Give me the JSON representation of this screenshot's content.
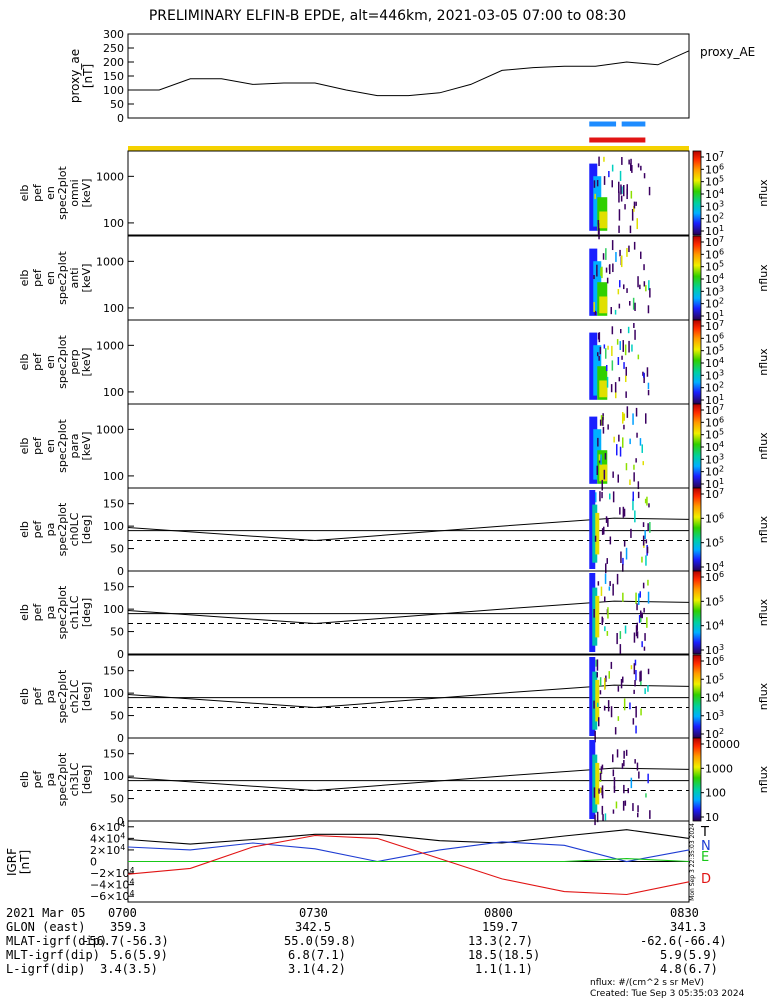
{
  "title": "PRELIMINARY ELFIN-B EPDE, alt=446km, 2021-03-05 07:00 to 08:30",
  "ae_panel": {
    "ylabel_line1": "proxy_ae",
    "ylabel_line2": "[nT]",
    "legend": "proxy_AE",
    "yticks": [
      "0",
      "50",
      "100",
      "150",
      "200",
      "250",
      "300"
    ]
  },
  "spec_panels": [
    {
      "label": [
        "elb",
        "pef",
        "en",
        "spec2plot",
        "omni",
        "[keV]"
      ],
      "yticks": [
        "100",
        "1000"
      ],
      "cb_unit": "nflux",
      "cb_ticks": [
        "10^7",
        "10^6",
        "10^5",
        "10^4",
        "10^3",
        "10^2",
        "10^1"
      ]
    },
    {
      "label": [
        "elb",
        "pef",
        "en",
        "spec2plot",
        "anti",
        "[keV]"
      ],
      "yticks": [
        "100",
        "1000"
      ],
      "cb_unit": "nflux",
      "cb_ticks": [
        "10^7",
        "10^6",
        "10^5",
        "10^4",
        "10^3",
        "10^2",
        "10^1"
      ]
    },
    {
      "label": [
        "elb",
        "pef",
        "en",
        "spec2plot",
        "perp",
        "[keV]"
      ],
      "yticks": [
        "100",
        "1000"
      ],
      "cb_unit": "nflux",
      "cb_ticks": [
        "10^7",
        "10^6",
        "10^5",
        "10^4",
        "10^3",
        "10^2",
        "10^1"
      ]
    },
    {
      "label": [
        "elb",
        "pef",
        "en",
        "spec2plot",
        "para",
        "[keV]"
      ],
      "yticks": [
        "100",
        "1000"
      ],
      "cb_unit": "nflux",
      "cb_ticks": [
        "10^7",
        "10^6",
        "10^5",
        "10^4",
        "10^3",
        "10^2",
        "10^1"
      ]
    }
  ],
  "pa_panels": [
    {
      "label": [
        "elb",
        "pef",
        "pa",
        "spec2plot",
        "ch0LC",
        "[deg]"
      ],
      "yticks": [
        "0",
        "50",
        "100",
        "150"
      ],
      "cb_unit": "nflux",
      "cb_ticks": [
        "10^7",
        "10^6",
        "10^5",
        "10^4"
      ]
    },
    {
      "label": [
        "elb",
        "pef",
        "pa",
        "spec2plot",
        "ch1LC",
        "[deg]"
      ],
      "yticks": [
        "0",
        "50",
        "100",
        "150"
      ],
      "cb_unit": "nflux",
      "cb_ticks": [
        "10^6",
        "10^5",
        "10^4",
        "10^3"
      ]
    },
    {
      "label": [
        "elb",
        "pef",
        "pa",
        "spec2plot",
        "ch2LC",
        "[deg]"
      ],
      "yticks": [
        "0",
        "50",
        "100",
        "150"
      ],
      "cb_unit": "nflux",
      "cb_ticks": [
        "10^6",
        "10^5",
        "10^4",
        "10^3",
        "10^2"
      ]
    },
    {
      "label": [
        "elb",
        "pef",
        "pa",
        "spec2plot",
        "ch3LC",
        "[deg]"
      ],
      "yticks": [
        "0",
        "50",
        "100",
        "150"
      ],
      "cb_unit": "nflux",
      "cb_ticks": [
        "10000",
        "1000",
        "100",
        "10"
      ]
    }
  ],
  "igrf_panel": {
    "ylabel_line1": "IGRF",
    "ylabel_line2": "[nT]",
    "yticks": [
      "6×10^4",
      "4×10^4",
      "2×10^4",
      "0",
      "−2×10^4",
      "−4×10^4",
      "−6×10^4"
    ],
    "legend": [
      {
        "name": "T",
        "color": "#000000"
      },
      {
        "name": "N",
        "color": "#1e3cd2"
      },
      {
        "name": "E",
        "color": "#19c819"
      },
      {
        "name": "D",
        "color": "#e11414"
      }
    ],
    "stamp": "Mon Sep  3 22:35:03 2024"
  },
  "bottom_labels": {
    "rows": [
      {
        "label": "2021 Mar 05",
        "values": [
          "0700",
          "0730",
          "0800",
          "0830"
        ]
      },
      {
        "label": "GLON (east)",
        "values": [
          "359.3",
          "342.5",
          "159.7",
          "341.3"
        ]
      },
      {
        "label": "MLAT-igrf(dip)",
        "values": [
          "-56.7(-56.3)",
          "55.0(59.8)",
          "13.3(2.7)",
          "-62.6(-66.4)"
        ]
      },
      {
        "label": "MLT-igrf(dip)",
        "values": [
          "5.6(5.9)",
          "6.8(7.1)",
          "18.5(18.5)",
          "5.9(5.9)"
        ]
      },
      {
        "label": "L-igrf(dip)",
        "values": [
          "3.4(3.5)",
          "3.1(4.2)",
          "1.1(1.1)",
          "4.8(6.7)"
        ]
      }
    ],
    "footer_line1": "nflux: #/(cm^2 s sr MeV)",
    "footer_line2": "Created: Tue Sep  3 05:35:03 2024"
  },
  "colors": {
    "state_bar": "#f5d200",
    "blue_bar": "#1e8cff",
    "red_bar": "#e11414",
    "ae_line": "#000000"
  },
  "chart_data": {
    "type": "line",
    "x_range_minutes": [
      0,
      90
    ],
    "x_tick_labels": [
      "0700",
      "0730",
      "0800",
      "0830"
    ],
    "proxy_ae": {
      "ylim": [
        0,
        300
      ],
      "x_min": [
        0,
        5,
        10,
        15,
        20,
        25,
        30,
        35,
        40,
        45,
        50,
        55,
        60,
        65,
        70,
        75,
        80,
        85,
        90
      ],
      "values": [
        100,
        100,
        140,
        140,
        120,
        125,
        125,
        100,
        80,
        80,
        90,
        120,
        170,
        180,
        185,
        185,
        200,
        190,
        240
      ]
    },
    "science_zone_minutes": [
      74,
      84
    ],
    "pa_loss_cone_deg": [
      97,
      68
    ],
    "igrf": {
      "ylim": [
        -70000,
        70000
      ],
      "x_min": [
        0,
        10,
        20,
        30,
        40,
        50,
        60,
        70,
        80,
        90
      ],
      "series": [
        {
          "name": "T",
          "values": [
            38000,
            30000,
            38000,
            47000,
            47000,
            36000,
            32000,
            44000,
            55000,
            40000
          ]
        },
        {
          "name": "N",
          "values": [
            25000,
            20000,
            32000,
            22000,
            0,
            20000,
            34000,
            28000,
            0,
            20000
          ]
        },
        {
          "name": "E",
          "values": [
            0,
            0,
            0,
            0,
            0,
            0,
            0,
            0,
            5000,
            0
          ]
        },
        {
          "name": "D",
          "values": [
            -22000,
            -12000,
            25000,
            45000,
            40000,
            5000,
            -30000,
            -52000,
            -57000,
            -35000
          ]
        }
      ]
    }
  }
}
